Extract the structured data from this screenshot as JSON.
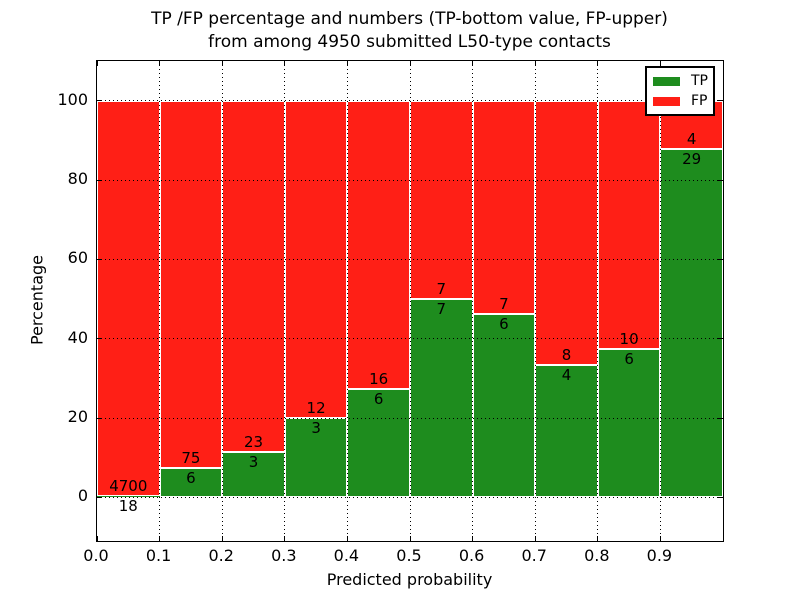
{
  "figure": {
    "title_line1": "TP /FP percentage and numbers (TP-bottom value, FP-upper)",
    "title_line2": "from among 4950 submitted L50-type contacts"
  },
  "chart_data": {
    "type": "bar",
    "stacked": true,
    "stack_mode": "percent-of-bin-total",
    "title": "TP /FP percentage and numbers (TP-bottom value, FP-upper)\nfrom among 4950 submitted L50-type contacts",
    "xlabel": "Predicted probability",
    "ylabel": "Percentage",
    "total_submitted": 4950,
    "bin_starts": [
      0.0,
      0.1,
      0.2,
      0.3,
      0.4,
      0.5,
      0.6,
      0.7,
      0.8,
      0.9
    ],
    "bin_width": 0.1,
    "series": [
      {
        "name": "TP",
        "color": "#1e8c1e",
        "counts": [
          18,
          6,
          3,
          3,
          6,
          7,
          6,
          4,
          6,
          29
        ]
      },
      {
        "name": "FP",
        "color": "#ff1f16",
        "counts": [
          4700,
          75,
          23,
          12,
          16,
          7,
          7,
          8,
          10,
          4
        ]
      }
    ],
    "tp_percent_derived": [
      0.38,
      7.41,
      11.54,
      20.0,
      27.27,
      50.0,
      46.15,
      33.33,
      37.5,
      87.88
    ],
    "x_ticks": [
      "0.0",
      "0.1",
      "0.2",
      "0.3",
      "0.4",
      "0.5",
      "0.6",
      "0.7",
      "0.8",
      "0.9"
    ],
    "y_ticks": [
      0,
      20,
      40,
      60,
      80,
      100
    ],
    "xlim": [
      0.0,
      1.0
    ],
    "ylim": [
      -11,
      110
    ],
    "grid": "dotted",
    "legend": {
      "position": "upper-right",
      "entries": [
        "TP",
        "FP"
      ]
    }
  },
  "colors": {
    "tp": "#1e8c1e",
    "fp": "#ff1f16",
    "background": "#ffffff",
    "grid": "#000000",
    "bar_edge": "#ffffff",
    "text": "#000000"
  }
}
